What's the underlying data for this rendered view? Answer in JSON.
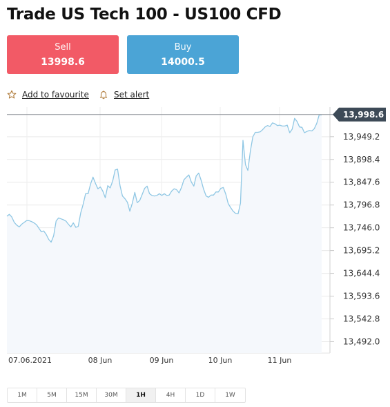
{
  "title": "Trade US Tech 100 - US100 CFD",
  "sell": {
    "label": "Sell",
    "price": "13998.6"
  },
  "buy": {
    "label": "Buy",
    "price": "14000.5"
  },
  "actions": {
    "favourite": "Add to favourite",
    "alert": "Set alert"
  },
  "colors": {
    "sell": "#f25a66",
    "buy": "#4ba4d6",
    "line": "#8fc7e4",
    "current_tag": "#3d4a57"
  },
  "icons": {
    "favourite": "star-icon",
    "alert": "bell-icon"
  },
  "chart_data": {
    "type": "line",
    "instrument": "US100 CFD",
    "timeframe": "1H",
    "current_value": 13998.6,
    "current_label": "13,998.6",
    "ylim": [
      13466.5,
      14015.2
    ],
    "y_ticks": [
      {
        "value": 13949.2,
        "label": "13,949.2"
      },
      {
        "value": 13898.4,
        "label": "13,898.4"
      },
      {
        "value": 13847.6,
        "label": "13,847.6"
      },
      {
        "value": 13796.8,
        "label": "13,796.8"
      },
      {
        "value": 13746.0,
        "label": "13,746.0"
      },
      {
        "value": 13695.2,
        "label": "13,695.2"
      },
      {
        "value": 13644.4,
        "label": "13,644.4"
      },
      {
        "value": 13593.6,
        "label": "13,593.6"
      },
      {
        "value": 13542.8,
        "label": "13,542.8"
      },
      {
        "value": 13492.0,
        "label": "13,492.0"
      }
    ],
    "x_ticks": [
      "07.06.2021",
      "08 Jun",
      "09 Jun",
      "10 Jun",
      "11 Jun"
    ],
    "grid": true,
    "series": [
      {
        "values": [
          13772,
          13776,
          13770,
          13758,
          13752,
          13748,
          13754,
          13758,
          13762,
          13762,
          13760,
          13757,
          13753,
          13745,
          13737,
          13739,
          13731,
          13720,
          13714,
          13728,
          13761,
          13768,
          13766,
          13764,
          13761,
          13754,
          13748,
          13757,
          13747,
          13749,
          13779,
          13798,
          13822,
          13822,
          13843,
          13859,
          13845,
          13833,
          13837,
          13828,
          13813,
          13840,
          13835,
          13850,
          13875,
          13877,
          13840,
          13817,
          13811,
          13803,
          13783,
          13801,
          13825,
          13802,
          13807,
          13820,
          13834,
          13839,
          13822,
          13818,
          13817,
          13818,
          13822,
          13818,
          13822,
          13818,
          13819,
          13828,
          13833,
          13831,
          13824,
          13836,
          13853,
          13859,
          13864,
          13848,
          13839,
          13862,
          13868,
          13852,
          13832,
          13817,
          13814,
          13819,
          13819,
          13826,
          13826,
          13834,
          13836,
          13821,
          13800,
          13791,
          13783,
          13778,
          13777,
          13801,
          13941,
          13887,
          13874,
          13917,
          13949,
          13959,
          13959,
          13960,
          13965,
          13971,
          13974,
          13972,
          13980,
          13978,
          13974,
          13975,
          13973,
          13973,
          13975,
          13958,
          13966,
          13990,
          13983,
          13971,
          13970,
          13958,
          13961,
          13963,
          13962,
          13967,
          13979,
          13998,
          13998
        ]
      }
    ]
  },
  "timeframes": [
    "1M",
    "5M",
    "15M",
    "30M",
    "1H",
    "4H",
    "1D",
    "1W"
  ],
  "active_timeframe": "1H"
}
